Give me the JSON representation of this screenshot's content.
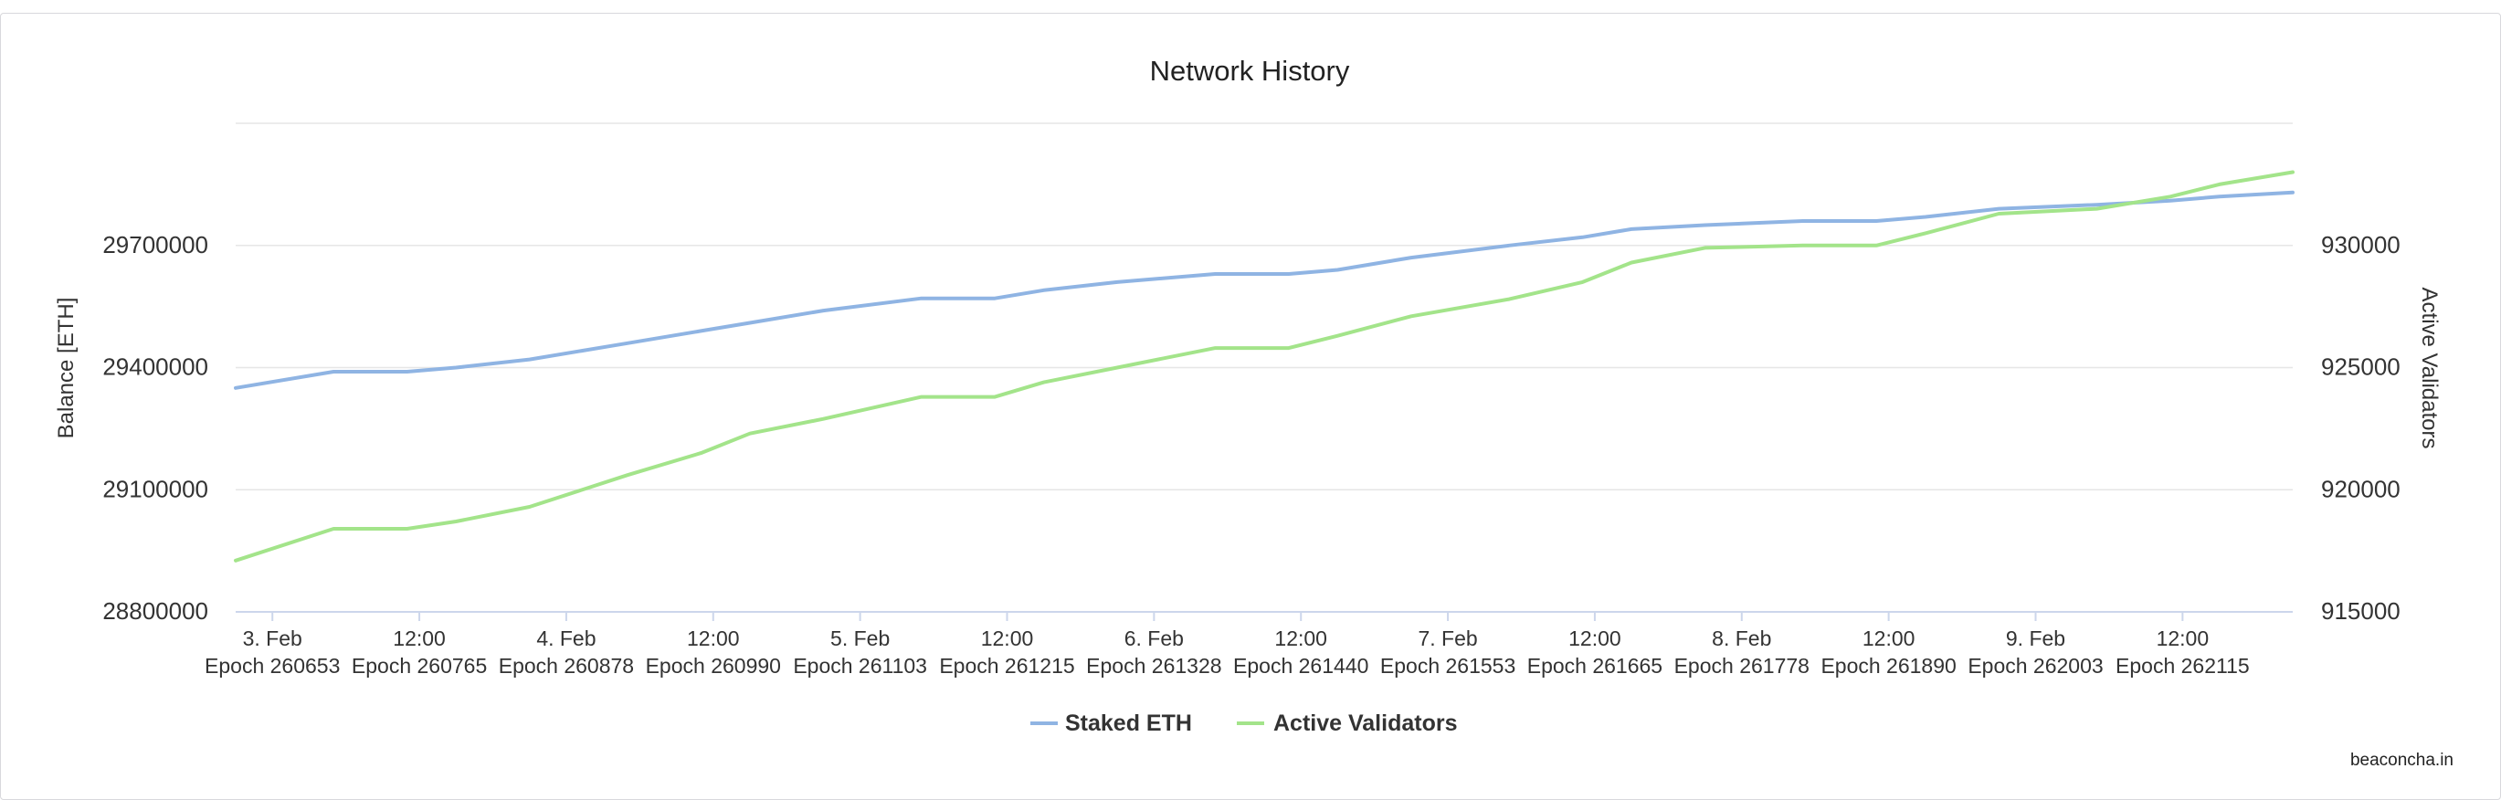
{
  "credits": "beaconcha.in",
  "colors": {
    "staked_eth": "#8fb4e3",
    "active_validators": "#a3e48a",
    "grid": "#e6e6e6",
    "axis_text": "#333333",
    "title": "#222222"
  },
  "chart_data": {
    "type": "line",
    "title": "Network History",
    "ylabel": "Balance [ETH]",
    "y2label": "Active Validators",
    "ylim": [
      28800000,
      30000000
    ],
    "y2lim": [
      915000,
      935000
    ],
    "y_ticks": [
      "28800000",
      "29100000",
      "29400000",
      "29700000"
    ],
    "y2_ticks": [
      "915000",
      "920000",
      "925000",
      "930000"
    ],
    "x_ticks": [
      {
        "label": "3. Feb",
        "epoch": "Epoch 260653"
      },
      {
        "label": "12:00",
        "epoch": "Epoch 260765"
      },
      {
        "label": "4. Feb",
        "epoch": "Epoch 260878"
      },
      {
        "label": "12:00",
        "epoch": "Epoch 260990"
      },
      {
        "label": "5. Feb",
        "epoch": "Epoch 261103"
      },
      {
        "label": "12:00",
        "epoch": "Epoch 261215"
      },
      {
        "label": "6. Feb",
        "epoch": "Epoch 261328"
      },
      {
        "label": "12:00",
        "epoch": "Epoch 261440"
      },
      {
        "label": "7. Feb",
        "epoch": "Epoch 261553"
      },
      {
        "label": "12:00",
        "epoch": "Epoch 261665"
      },
      {
        "label": "8. Feb",
        "epoch": "Epoch 261778"
      },
      {
        "label": "12:00",
        "epoch": "Epoch 261890"
      },
      {
        "label": "9. Feb",
        "epoch": "Epoch 262003"
      },
      {
        "label": "12:00",
        "epoch": "Epoch 262115"
      }
    ],
    "x": [
      "2024-02-02T21:00",
      "2024-02-03T05:00",
      "2024-02-03T11:00",
      "2024-02-03T15:00",
      "2024-02-03T21:00",
      "2024-02-04T05:00",
      "2024-02-04T11:00",
      "2024-02-04T15:00",
      "2024-02-04T21:00",
      "2024-02-05T05:00",
      "2024-02-05T11:00",
      "2024-02-05T15:00",
      "2024-02-05T21:00",
      "2024-02-06T05:00",
      "2024-02-06T11:00",
      "2024-02-06T15:00",
      "2024-02-06T21:00",
      "2024-02-07T05:00",
      "2024-02-07T11:00",
      "2024-02-07T15:00",
      "2024-02-07T21:00",
      "2024-02-08T05:00",
      "2024-02-08T11:00",
      "2024-02-08T15:00",
      "2024-02-08T21:00",
      "2024-02-09T05:00",
      "2024-02-09T11:00",
      "2024-02-09T15:00",
      "2024-02-09T21:00"
    ],
    "series": [
      {
        "name": "Staked ETH",
        "axis": "left",
        "values": [
          29350000,
          29390000,
          29390000,
          29400000,
          29420000,
          29460000,
          29490000,
          29510000,
          29540000,
          29570000,
          29570000,
          29590000,
          29610000,
          29630000,
          29630000,
          29640000,
          29670000,
          29700000,
          29720000,
          29740000,
          29750000,
          29760000,
          29760000,
          29770000,
          29790000,
          29800000,
          29810000,
          29820000,
          29830000
        ]
      },
      {
        "name": "Active Validators",
        "axis": "right",
        "values": [
          917100,
          918400,
          918400,
          918700,
          919300,
          920600,
          921500,
          922300,
          922900,
          923800,
          923800,
          924400,
          925000,
          925800,
          925800,
          926300,
          927100,
          927800,
          928500,
          929300,
          929900,
          930000,
          930000,
          930500,
          931300,
          931500,
          932000,
          932500,
          933000
        ]
      }
    ],
    "legend_position": "bottom-center",
    "grid": true
  }
}
